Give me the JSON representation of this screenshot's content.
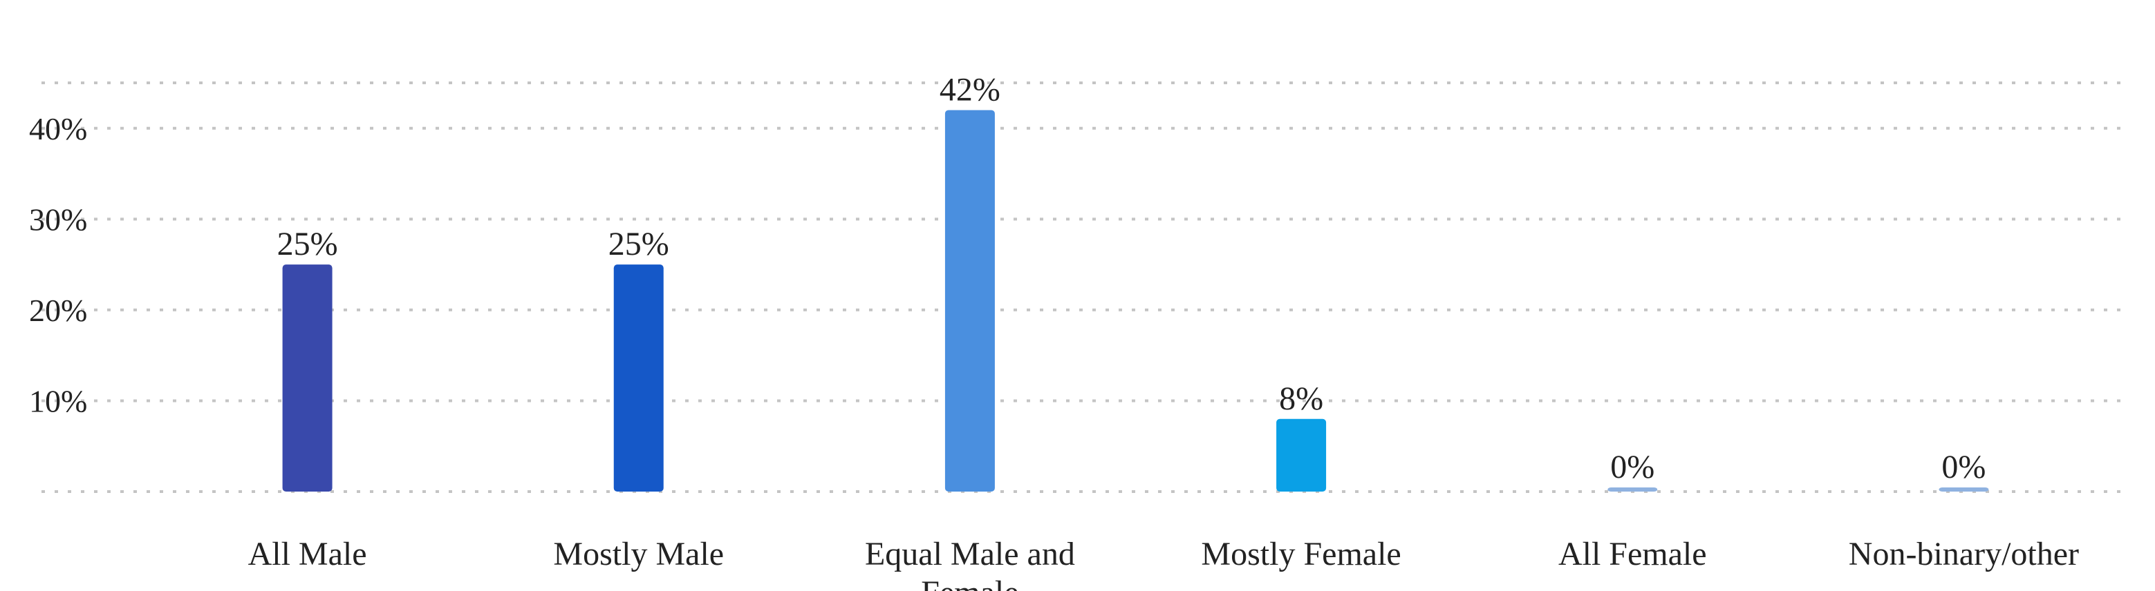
{
  "chart_data": {
    "type": "bar",
    "title": "",
    "xlabel": "",
    "ylabel": "",
    "categories": [
      "All Male",
      "Mostly Male",
      "Equal Male and Female",
      "Mostly Female",
      "All Female",
      "Non-binary/other"
    ],
    "values": [
      25,
      25,
      42,
      8,
      0,
      0
    ],
    "data_labels": [
      "25%",
      "25%",
      "42%",
      "8%",
      "0%",
      "0%"
    ],
    "colors": [
      "#3949ab",
      "#1558c8",
      "#4a8fdf",
      "#0aa0e6",
      "#8fb2e0",
      "#8fb2e0"
    ],
    "yticks": [
      10,
      20,
      30,
      40
    ],
    "ytick_labels": [
      "10%",
      "20%",
      "30%",
      "40%"
    ],
    "ylim": [
      0,
      45
    ],
    "grid": true,
    "legend": "none"
  }
}
